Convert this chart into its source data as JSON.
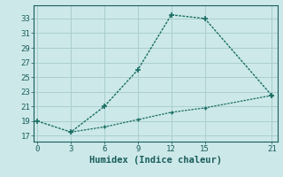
{
  "xlabel": "Humidex (Indice chaleur)",
  "bg_color": "#cce8e8",
  "line_color": "#1a6e64",
  "line1_x": [
    0,
    3,
    6,
    9,
    12,
    15,
    21
  ],
  "line1_y": [
    19,
    17.5,
    21,
    26,
    33.5,
    33,
    22.5
  ],
  "line2_x": [
    3,
    6,
    9,
    12,
    15,
    21
  ],
  "line2_y": [
    17.5,
    18.2,
    19.2,
    20.2,
    20.8,
    22.5
  ],
  "xlim": [
    -0.3,
    21.5
  ],
  "ylim": [
    16.2,
    34.8
  ],
  "xticks": [
    0,
    3,
    6,
    9,
    12,
    15,
    21
  ],
  "yticks": [
    17,
    19,
    21,
    23,
    25,
    27,
    29,
    31,
    33
  ],
  "grid_color": "#aacece",
  "font_color": "#1a5c5c",
  "xlabel_fontsize": 7.5,
  "tick_fontsize": 6.5
}
